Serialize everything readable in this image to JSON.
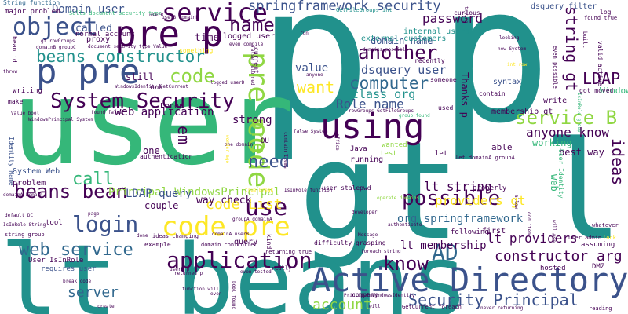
{
  "palette": {
    "dark_purple": "#440154",
    "indigo": "#3b528b",
    "blue": "#31688e",
    "teal": "#21918c",
    "green": "#35b779",
    "lime": "#90d743",
    "yellow": "#fde725"
  },
  "words": [
    {
      "text": "p"
    },
    {
      "text": "p"
    },
    {
      "text": "user"
    },
    {
      "text": "gt lt"
    },
    {
      "text": "lt beans"
    },
    {
      "text": "Active Directory"
    },
    {
      "text": "pre p"
    },
    {
      "text": "p pre"
    },
    {
      "text": "using"
    },
    {
      "text": "service"
    },
    {
      "text": "springframework security"
    },
    {
      "text": "object"
    },
    {
      "text": "name"
    },
    {
      "text": "beans constructor"
    },
    {
      "text": "System Security"
    },
    {
      "text": "another"
    },
    {
      "text": "code"
    },
    {
      "text": "pre code"
    },
    {
      "text": "want"
    },
    {
      "text": "dsquery user"
    },
    {
      "text": "computer"
    },
    {
      "text": "class org"
    },
    {
      "text": "Role name"
    },
    {
      "text": "LDAP"
    },
    {
      "text": "service B"
    },
    {
      "text": "string gt"
    },
    {
      "text": "beans bean"
    },
    {
      "text": "login"
    },
    {
      "text": "code pre"
    },
    {
      "text": "use"
    },
    {
      "text": "possible"
    },
    {
      "text": "lt string"
    },
    {
      "text": "call"
    },
    {
      "text": "need"
    },
    {
      "text": "code List"
    },
    {
      "text": "web service"
    },
    {
      "text": "application"
    },
    {
      "text": "know"
    },
    {
      "text": "AD"
    },
    {
      "text": "constructor arg"
    },
    {
      "text": "Security Principal"
    },
    {
      "text": "lt providers"
    },
    {
      "text": "org springframework"
    },
    {
      "text": "lt membership"
    },
    {
      "text": "server"
    },
    {
      "text": "account"
    },
    {
      "text": "anyone know"
    },
    {
      "text": "ideas"
    },
    {
      "text": "Domain user"
    },
    {
      "text": "password"
    },
    {
      "text": "Principal WindowsPrincipal"
    },
    {
      "text": "LDAP query"
    },
    {
      "text": "web application"
    },
    {
      "text": "pre"
    },
    {
      "text": "em"
    },
    {
      "text": "value"
    },
    {
      "text": "strong"
    },
    {
      "text": "providers gt"
    },
    {
      "text": "still"
    },
    {
      "text": "working"
    },
    {
      "text": "best way"
    },
    {
      "text": "time"
    },
    {
      "text": "called"
    },
    {
      "text": "domain name"
    },
    {
      "text": "internal users"
    },
    {
      "text": "external customers"
    },
    {
      "text": "GetFileGroups int"
    },
    {
      "text": "String function"
    },
    {
      "text": "major problem"
    },
    {
      "text": "Sells document_security_type"
    },
    {
      "text": "normal account"
    },
    {
      "text": "logged user"
    },
    {
      "text": "Logon"
    },
    {
      "text": "look"
    },
    {
      "text": "Windows"
    },
    {
      "text": "membership gt"
    },
    {
      "text": "write"
    },
    {
      "text": "Thanks p"
    },
    {
      "text": "one"
    },
    {
      "text": "way check"
    },
    {
      "text": "couple"
    },
    {
      "text": "Identity Name"
    },
    {
      "text": "System Web"
    },
    {
      "text": "problem"
    },
    {
      "text": "tool"
    },
    {
      "text": "writing"
    },
    {
      "text": "make"
    },
    {
      "text": "requires user"
    },
    {
      "text": "User IsInRole"
    },
    {
      "text": "string group"
    },
    {
      "text": "domain controller"
    },
    {
      "text": "query"
    },
    {
      "text": "example"
    },
    {
      "text": "kind"
    },
    {
      "text": "returning true"
    },
    {
      "text": "proxy"
    },
    {
      "text": "first"
    },
    {
      "text": "following"
    },
    {
      "text": "hosted"
    },
    {
      "text": "DMZ"
    },
    {
      "text": "assuming"
    },
    {
      "text": "IsInRole group"
    },
    {
      "text": "User Identity"
    },
    {
      "text": "got moved"
    },
    {
      "text": "valid active"
    },
    {
      "text": "syntax"
    },
    {
      "text": "contain"
    },
    {
      "text": "dsquery filter"
    },
    {
      "text": "recently"
    },
    {
      "text": "someone"
    },
    {
      "text": "used"
    },
    {
      "text": "group found"
    },
    {
      "text": "company"
    },
    {
      "text": "running"
    },
    {
      "text": "test"
    },
    {
      "text": "Java"
    },
    {
      "text": "office"
    },
    {
      "text": "wanted"
    },
    {
      "text": "let"
    },
    {
      "text": "able"
    },
    {
      "text": "web"
    },
    {
      "text": "properly"
    },
    {
      "text": "let domainA groupA"
    },
    {
      "text": "Value bool"
    },
    {
      "text": "found false"
    },
    {
      "text": "default DC"
    },
    {
      "text": "rowGroups GetFileGroups"
    },
    {
      "text": "curious"
    },
    {
      "text": "log"
    },
    {
      "text": "found true"
    },
    {
      "text": "built"
    },
    {
      "text": "even possible"
    },
    {
      "text": "new System"
    },
    {
      "text": "looking"
    },
    {
      "text": "int row"
    },
    {
      "text": "Principal WindowsIdentity"
    },
    {
      "text": "function will"
    },
    {
      "text": "returned p"
    },
    {
      "text": "done"
    },
    {
      "text": "really"
    },
    {
      "text": "even tested"
    },
    {
      "text": "bool found"
    },
    {
      "text": "GetCurrent foreach"
    },
    {
      "text": "never returning"
    },
    {
      "text": "reading"
    },
    {
      "text": "whatever"
    },
    {
      "text": "lock"
    },
    {
      "text": "will use"
    },
    {
      "text": "allow"
    },
    {
      "text": "odd item"
    },
    {
      "text": "user admin"
    },
    {
      "text": "difficulty grasping"
    },
    {
      "text": "foreach string"
    },
    {
      "text": "Message"
    },
    {
      "text": "developer"
    },
    {
      "text": "authenticate"
    },
    {
      "text": "operate domains"
    },
    {
      "text": "user stalepwd"
    },
    {
      "text": "IsInRole function"
    },
    {
      "text": "false System"
    },
    {
      "text": "contain items"
    },
    {
      "text": "one domain"
    },
    {
      "text": "OU"
    },
    {
      "text": "authentication"
    },
    {
      "text": "ideas changing"
    },
    {
      "text": "break code"
    },
    {
      "text": "create"
    },
    {
      "text": "page"
    },
    {
      "text": "IsInRole String"
    },
    {
      "text": "domainA Domain"
    },
    {
      "text": "WindowsPrincipal System"
    },
    {
      "text": "throw"
    },
    {
      "text": "bean id"
    },
    {
      "text": "gt rowGroups"
    },
    {
      "text": "domainB groupC"
    },
    {
      "text": "document_security_type Value"
    },
    {
      "text": "WindowsIdentity GetCurrent"
    },
    {
      "text": "logged userD"
    },
    {
      "text": "something"
    },
    {
      "text": "even compile"
    },
    {
      "text": "current"
    },
    {
      "text": "false returned"
    },
    {
      "text": "userB domainB"
    },
    {
      "text": "domains possible"
    },
    {
      "text": "run"
    },
    {
      "text": "anyone"
    },
    {
      "text": "trying"
    },
    {
      "text": "will"
    },
    {
      "text": "groupA domainA"
    },
    {
      "text": "userD p"
    },
    {
      "text": "domainA userB"
    },
    {
      "text": "userB"
    },
    {
      "text": "even"
    },
    {
      "text": "true Break"
    },
    {
      "text": "wonder ago"
    }
  ]
}
